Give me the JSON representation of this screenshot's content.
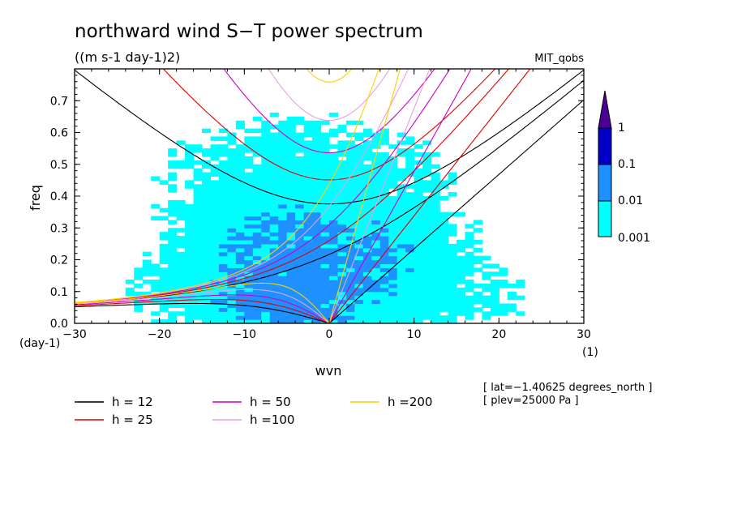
{
  "chart_data": {
    "type": "heatmap",
    "title": "northward wind S−T power spectrum",
    "subtitle": "((m s-1 day-1)2)",
    "model_label": "MIT_qobs",
    "xlabel": "wvn",
    "ylabel": "freq",
    "x_unit": "(1)",
    "y_unit": "(day-1)",
    "xlim": [
      -30,
      30
    ],
    "ylim": [
      0,
      0.8
    ],
    "x_ticks": [
      -30,
      -20,
      -10,
      0,
      10,
      20,
      30
    ],
    "x_tick_labels": [
      "−30",
      "−20",
      "−10",
      "0",
      "10",
      "20",
      "30"
    ],
    "y_ticks": [
      0.0,
      0.1,
      0.2,
      0.3,
      0.4,
      0.5,
      0.6,
      0.7
    ],
    "y_tick_labels": [
      "0.0",
      "0.1",
      "0.2",
      "0.3",
      "0.4",
      "0.5",
      "0.6",
      "0.7"
    ],
    "colorbar": {
      "levels": [
        0.001,
        0.01,
        0.1,
        1
      ],
      "level_labels": [
        "0.001",
        "0.01",
        "0.1",
        "1"
      ],
      "colors": [
        "#00ffff",
        "#1e90ff",
        "#0000c8",
        "#4b0096"
      ]
    },
    "info": [
      "[ lat=−1.40625 degrees_north ]",
      "[ plev=25000 Pa ]"
    ],
    "dispersion_curves": [
      {
        "label": "h = 12",
        "depth": 12,
        "color": "#000000"
      },
      {
        "label": "h = 25",
        "depth": 25,
        "color": "#e00000"
      },
      {
        "label": "h = 50",
        "depth": 50,
        "color": "#cc00cc"
      },
      {
        "label": "h =100",
        "depth": 100,
        "color": "#e8a0e0"
      },
      {
        "label": "h =200",
        "depth": 200,
        "color": "#ffd000"
      }
    ],
    "power_blobs": [
      {
        "x": -5,
        "y": 0.2,
        "sx": 6,
        "sy": 0.1,
        "amp": 0.012
      },
      {
        "x": 2,
        "y": 0.2,
        "sx": 7,
        "sy": 0.1,
        "amp": 0.01
      },
      {
        "x": -3,
        "y": 0.45,
        "sx": 10,
        "sy": 0.12,
        "amp": 0.003
      },
      {
        "x": -5,
        "y": 0.06,
        "sx": 4,
        "sy": 0.05,
        "amp": 0.025
      },
      {
        "x": 12,
        "y": 0.08,
        "sx": 8,
        "sy": 0.06,
        "amp": 0.002
      },
      {
        "x": -15,
        "y": 0.1,
        "sx": 6,
        "sy": 0.07,
        "amp": 0.002
      }
    ]
  }
}
